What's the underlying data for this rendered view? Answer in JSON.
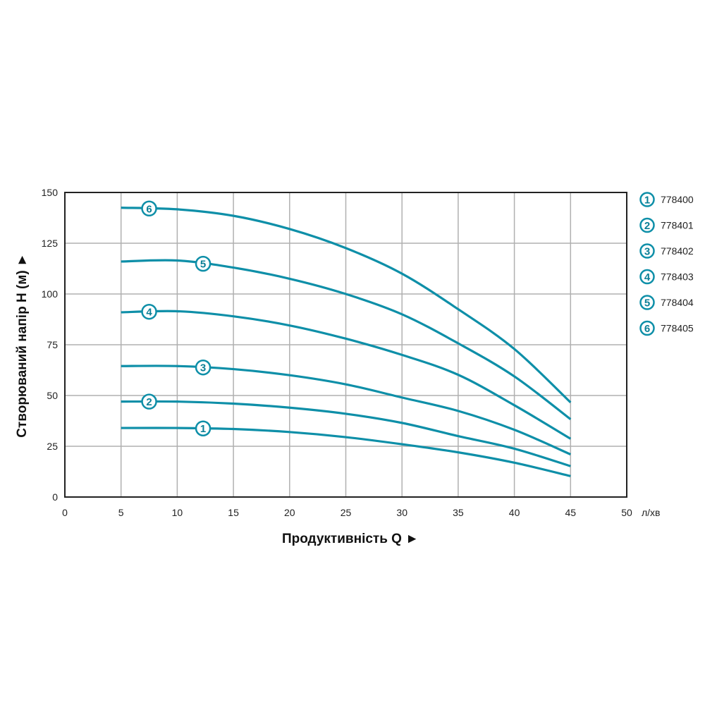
{
  "chart_data": {
    "type": "line",
    "xlabel": "Продуктивність  Q ►",
    "ylabel": "Створюваний напір H (м) ►",
    "x_unit": "л/хв",
    "xlim": [
      0,
      50
    ],
    "ylim": [
      0,
      150
    ],
    "x_ticks": [
      0,
      5,
      10,
      15,
      20,
      25,
      30,
      35,
      40,
      45,
      50
    ],
    "y_ticks": [
      0,
      25,
      50,
      75,
      100,
      125,
      150
    ],
    "grid": true,
    "legend_position": "right",
    "line_color": "#0e8fa8",
    "x": [
      5,
      10,
      15,
      20,
      25,
      30,
      35,
      40,
      45
    ],
    "series": [
      {
        "name": "778400",
        "marker": "1",
        "values": [
          34,
          34,
          33.5,
          32,
          29.5,
          26,
          22,
          16.9,
          10.3
        ]
      },
      {
        "name": "778401",
        "marker": "2",
        "values": [
          47,
          47,
          46,
          44,
          41,
          36.5,
          30,
          23.8,
          15.2
        ]
      },
      {
        "name": "778402",
        "marker": "3",
        "values": [
          64.5,
          64.5,
          63,
          60,
          55.5,
          49,
          42.4,
          33.1,
          21
        ]
      },
      {
        "name": "778403",
        "marker": "4",
        "values": [
          91,
          91.5,
          89,
          84.5,
          78,
          70,
          60.2,
          45.2,
          28.7
        ]
      },
      {
        "name": "778404",
        "marker": "5",
        "values": [
          116,
          116.5,
          113,
          107.5,
          100,
          90,
          75.7,
          59.4,
          38.3
        ]
      },
      {
        "name": "778405",
        "marker": "6",
        "values": [
          142.5,
          141.7,
          138.5,
          132,
          122.6,
          110,
          92.5,
          72.9,
          46.6
        ]
      }
    ]
  }
}
